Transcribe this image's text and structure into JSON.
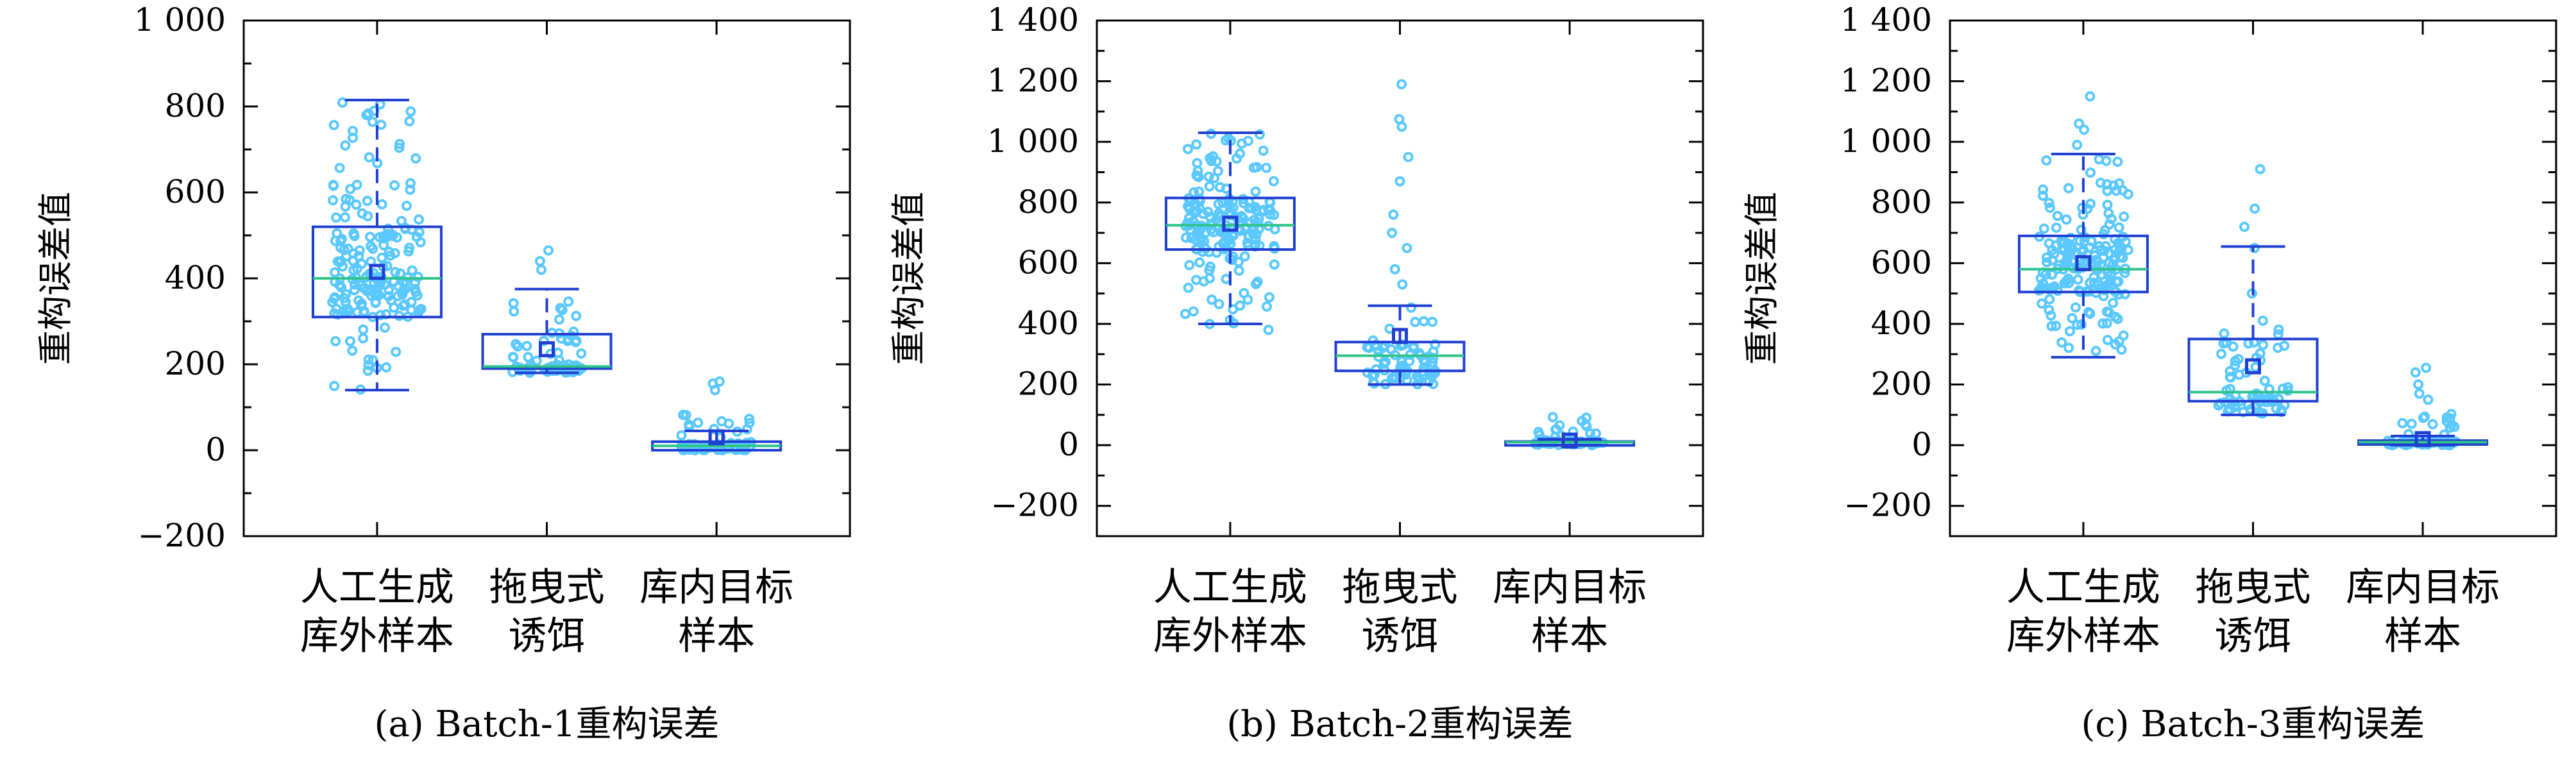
{
  "figure": {
    "panels_count": 3
  },
  "colors": {
    "box": "#1f3fd1",
    "median": "#2ec48a",
    "mean": "#1f3fd1",
    "points": "#5ac8ff",
    "axis": "#000000"
  },
  "chart_data": [
    {
      "type": "box",
      "caption": "(a) Batch-1重构误差",
      "ylabel": "重构误差值",
      "ylim": [
        -200,
        1000
      ],
      "yticks": [
        -200,
        0,
        200,
        400,
        600,
        800,
        1000
      ],
      "ytick_labels": [
        "−200",
        "0",
        "200",
        "400",
        "600",
        "800",
        "1 000"
      ],
      "categories": [
        [
          "人工生成",
          "库外样本"
        ],
        [
          "拖曳式",
          "诱饵"
        ],
        [
          "库内目标",
          "样本"
        ]
      ],
      "boxes": [
        {
          "q1": 310,
          "median": 400,
          "q3": 520,
          "whisker_low": 140,
          "whisker_high": 815,
          "mean": 415
        },
        {
          "q1": 190,
          "median": 195,
          "q3": 270,
          "whisker_low": 180,
          "whisker_high": 375,
          "mean": 235
        },
        {
          "q1": 0,
          "median": 10,
          "q3": 20,
          "whisker_low": 0,
          "whisker_high": 45,
          "mean": 30
        }
      ],
      "points_extent": [
        {
          "min": 140,
          "max": 815,
          "extra": [
            790,
            805
          ]
        },
        {
          "min": 180,
          "max": 375,
          "extra": [
            420,
            440,
            465
          ]
        },
        {
          "min": 0,
          "max": 90,
          "extra": [
            140,
            155,
            160
          ]
        }
      ]
    },
    {
      "type": "box",
      "caption": "(b) Batch-2重构误差",
      "ylabel": "重构误差值",
      "ylim": [
        -300,
        1400
      ],
      "yticks": [
        -200,
        0,
        200,
        400,
        600,
        800,
        1000,
        1200,
        1400
      ],
      "ytick_labels": [
        "−200",
        "0",
        "200",
        "400",
        "600",
        "800",
        "1 000",
        "1 200",
        "1 400"
      ],
      "categories": [
        [
          "人工生成",
          "库外样本"
        ],
        [
          "拖曳式",
          "诱饵"
        ],
        [
          "库内目标",
          "样本"
        ]
      ],
      "boxes": [
        {
          "q1": 645,
          "median": 725,
          "q3": 815,
          "whisker_low": 400,
          "whisker_high": 1030,
          "mean": 730
        },
        {
          "q1": 245,
          "median": 295,
          "q3": 340,
          "whisker_low": 200,
          "whisker_high": 460,
          "mean": 360
        },
        {
          "q1": 5,
          "median": 10,
          "q3": 12,
          "whisker_low": 0,
          "whisker_high": 20,
          "mean": 15
        }
      ],
      "points_extent": [
        {
          "min": 380,
          "max": 1030,
          "extra": []
        },
        {
          "min": 200,
          "max": 460,
          "extra": [
            530,
            580,
            650,
            700,
            760,
            870,
            950,
            1050,
            1075,
            1190
          ]
        },
        {
          "min": 0,
          "max": 95,
          "extra": []
        }
      ]
    },
    {
      "type": "box",
      "caption": "(c) Batch-3重构误差",
      "ylabel": "重构误差值",
      "ylim": [
        -300,
        1400
      ],
      "yticks": [
        -200,
        0,
        200,
        400,
        600,
        800,
        1000,
        1200,
        1400
      ],
      "ytick_labels": [
        "−200",
        "0",
        "200",
        "400",
        "600",
        "800",
        "1 000",
        "1 200",
        "1 400"
      ],
      "categories": [
        [
          "人工生成",
          "库外样本"
        ],
        [
          "拖曳式",
          "诱饵"
        ],
        [
          "库内目标",
          "样本"
        ]
      ],
      "boxes": [
        {
          "q1": 505,
          "median": 580,
          "q3": 690,
          "whisker_low": 290,
          "whisker_high": 960,
          "mean": 600
        },
        {
          "q1": 145,
          "median": 175,
          "q3": 350,
          "whisker_low": 100,
          "whisker_high": 655,
          "mean": 260
        },
        {
          "q1": 5,
          "median": 10,
          "q3": 15,
          "whisker_low": 0,
          "whisker_high": 30,
          "mean": 20
        }
      ],
      "points_extent": [
        {
          "min": 290,
          "max": 960,
          "extra": [
            990,
            1040,
            1060,
            1150
          ]
        },
        {
          "min": 100,
          "max": 420,
          "extra": [
            500,
            650,
            720,
            780,
            910
          ]
        },
        {
          "min": 0,
          "max": 130,
          "extra": [
            150,
            170,
            200,
            240,
            255
          ]
        }
      ]
    }
  ]
}
